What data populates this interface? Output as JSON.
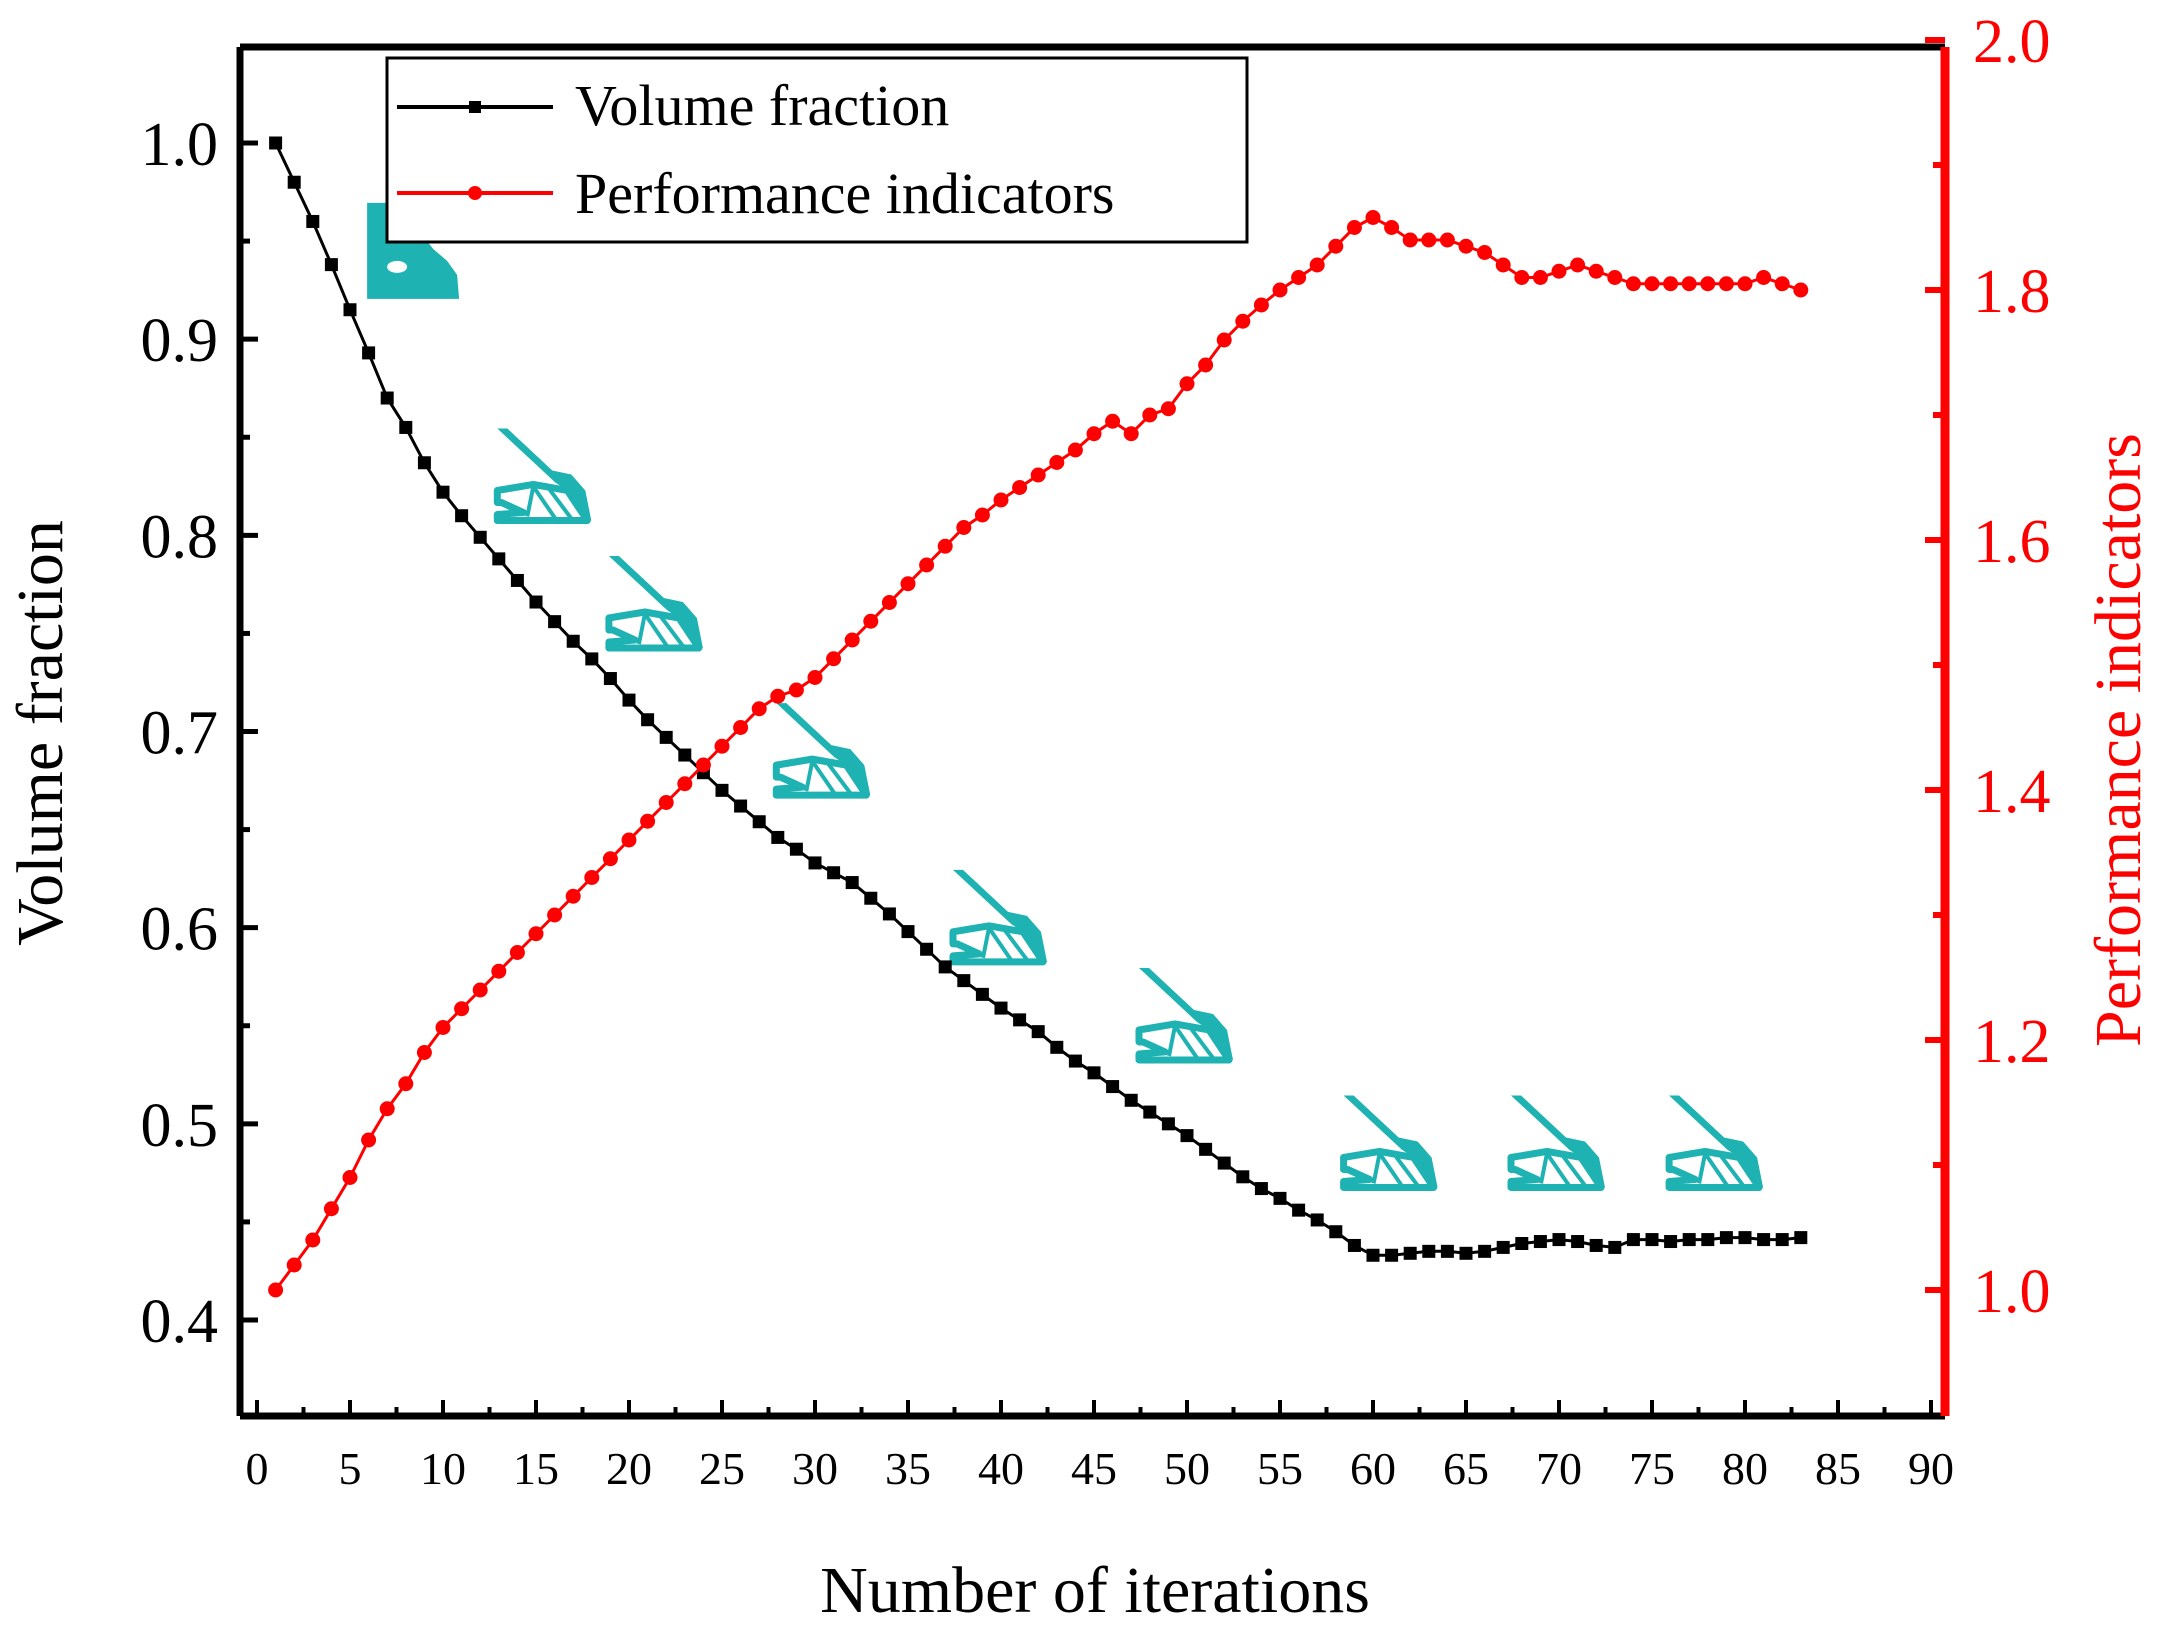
{
  "colors": {
    "left_axis": "#000000",
    "right_axis": "#ff0000",
    "volume_series": "#000000",
    "performance_series": "#ff0000",
    "topology_shape": "#1fb2b2"
  },
  "chart_data": {
    "type": "line",
    "xlabel": "Number of iterations",
    "ylabel_left": "Volume fraction",
    "ylabel_right": "Performance indicators",
    "xlim": [
      0,
      90
    ],
    "ylim_left": [
      0.35,
      1.05
    ],
    "ylim_right": [
      0.9,
      2.0
    ],
    "x_ticks": [
      0,
      5,
      10,
      15,
      20,
      25,
      30,
      35,
      40,
      45,
      50,
      55,
      60,
      65,
      70,
      75,
      80,
      85,
      90
    ],
    "x_tick_labels": [
      "0",
      "5",
      "10",
      "15",
      "20",
      "25",
      "30",
      "35",
      "40",
      "45",
      "50",
      "55",
      "60",
      "65",
      "70",
      "75",
      "80",
      "85",
      "90"
    ],
    "y_left_ticks": [
      0.4,
      0.5,
      0.6,
      0.7,
      0.8,
      0.9,
      1.0
    ],
    "y_left_tick_labels": [
      "0.4",
      "0.5",
      "0.6",
      "0.7",
      "0.8",
      "0.9",
      "1.0"
    ],
    "y_right_ticks": [
      1.0,
      1.2,
      1.4,
      1.6,
      1.8,
      2.0
    ],
    "y_right_tick_labels": [
      "1.0",
      "1.2",
      "1.4",
      "1.6",
      "1.8",
      "2.0"
    ],
    "legend_position": "top-left",
    "series": [
      {
        "name": "Volume fraction",
        "axis": "left",
        "marker": "square",
        "x": [
          1,
          2,
          3,
          4,
          5,
          6,
          7,
          8,
          9,
          10,
          11,
          12,
          13,
          14,
          15,
          16,
          17,
          18,
          19,
          20,
          21,
          22,
          23,
          24,
          25,
          26,
          27,
          28,
          29,
          30,
          31,
          32,
          33,
          34,
          35,
          36,
          37,
          38,
          39,
          40,
          41,
          42,
          43,
          44,
          45,
          46,
          47,
          48,
          49,
          50,
          51,
          52,
          53,
          54,
          55,
          56,
          57,
          58,
          59,
          60,
          61,
          62,
          63,
          64,
          65,
          66,
          67,
          68,
          69,
          70,
          71,
          72,
          73,
          74,
          75,
          76,
          77,
          78,
          79,
          80,
          81,
          82,
          83
        ],
        "values": [
          1.0,
          0.98,
          0.96,
          0.938,
          0.915,
          0.893,
          0.87,
          0.855,
          0.837,
          0.822,
          0.81,
          0.799,
          0.788,
          0.777,
          0.766,
          0.756,
          0.746,
          0.737,
          0.727,
          0.716,
          0.706,
          0.697,
          0.688,
          0.679,
          0.67,
          0.662,
          0.654,
          0.646,
          0.64,
          0.633,
          0.628,
          0.623,
          0.615,
          0.607,
          0.598,
          0.589,
          0.58,
          0.573,
          0.566,
          0.559,
          0.553,
          0.547,
          0.539,
          0.532,
          0.526,
          0.519,
          0.512,
          0.506,
          0.5,
          0.494,
          0.487,
          0.48,
          0.473,
          0.467,
          0.462,
          0.456,
          0.451,
          0.445,
          0.438,
          0.433,
          0.433,
          0.434,
          0.435,
          0.435,
          0.434,
          0.435,
          0.437,
          0.439,
          0.44,
          0.441,
          0.44,
          0.438,
          0.437,
          0.441,
          0.441,
          0.44,
          0.441,
          0.441,
          0.442,
          0.442,
          0.441,
          0.441,
          0.442
        ]
      },
      {
        "name": "Performance indicators",
        "axis": "right",
        "marker": "circle",
        "x": [
          1,
          2,
          3,
          4,
          5,
          6,
          7,
          8,
          9,
          10,
          11,
          12,
          13,
          14,
          15,
          16,
          17,
          18,
          19,
          20,
          21,
          22,
          23,
          24,
          25,
          26,
          27,
          28,
          29,
          30,
          31,
          32,
          33,
          34,
          35,
          36,
          37,
          38,
          39,
          40,
          41,
          42,
          43,
          44,
          45,
          46,
          47,
          48,
          49,
          50,
          51,
          52,
          53,
          54,
          55,
          56,
          57,
          58,
          59,
          60,
          61,
          62,
          63,
          64,
          65,
          66,
          67,
          68,
          69,
          70,
          71,
          72,
          73,
          74,
          75,
          76,
          77,
          78,
          79,
          80,
          81,
          82,
          83
        ],
        "values": [
          1.0,
          1.02,
          1.04,
          1.065,
          1.09,
          1.12,
          1.145,
          1.165,
          1.19,
          1.21,
          1.225,
          1.24,
          1.255,
          1.27,
          1.285,
          1.3,
          1.315,
          1.33,
          1.345,
          1.36,
          1.375,
          1.39,
          1.405,
          1.42,
          1.435,
          1.45,
          1.465,
          1.475,
          1.48,
          1.49,
          1.505,
          1.52,
          1.535,
          1.55,
          1.565,
          1.58,
          1.595,
          1.61,
          1.62,
          1.632,
          1.642,
          1.652,
          1.662,
          1.672,
          1.685,
          1.695,
          1.685,
          1.7,
          1.705,
          1.725,
          1.74,
          1.76,
          1.775,
          1.788,
          1.8,
          1.81,
          1.82,
          1.835,
          1.85,
          1.858,
          1.85,
          1.84,
          1.84,
          1.84,
          1.835,
          1.83,
          1.82,
          1.81,
          1.81,
          1.815,
          1.82,
          1.815,
          1.81,
          1.805,
          1.805,
          1.805,
          1.805,
          1.805,
          1.805,
          1.805,
          1.81,
          1.805,
          1.8
        ]
      }
    ],
    "insets": [
      {
        "name": "topology-inset-1",
        "x": 8.5,
        "y_left": 0.945
      },
      {
        "name": "topology-inset-2",
        "x": 15.5,
        "y_left": 0.83
      },
      {
        "name": "topology-inset-3",
        "x": 21.5,
        "y_left": 0.765
      },
      {
        "name": "topology-inset-4",
        "x": 30.5,
        "y_left": 0.69
      },
      {
        "name": "topology-inset-5",
        "x": 40.0,
        "y_left": 0.605
      },
      {
        "name": "topology-inset-6",
        "x": 50.0,
        "y_left": 0.555
      },
      {
        "name": "topology-inset-7",
        "x": 61.0,
        "y_left": 0.49
      },
      {
        "name": "topology-inset-8",
        "x": 70.0,
        "y_left": 0.49
      },
      {
        "name": "topology-inset-9",
        "x": 78.5,
        "y_left": 0.49
      }
    ]
  }
}
